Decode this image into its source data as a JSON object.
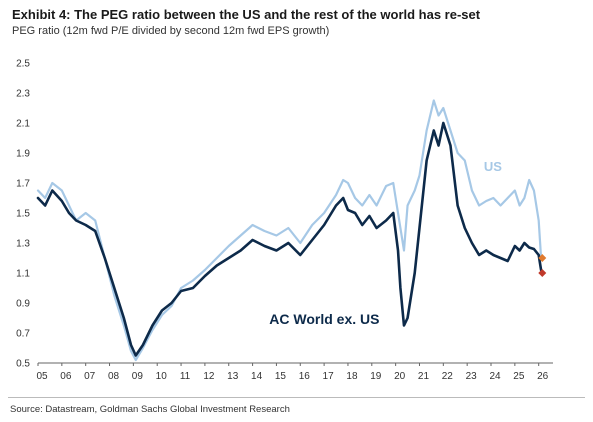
{
  "chart_data": {
    "type": "line",
    "title": "Exhibit 4: The PEG ratio between the US and the rest of the world has re-set",
    "subtitle": "PEG ratio (12m fwd P/E divided by second 12m fwd EPS growth)",
    "source": "Source: Datastream, Goldman Sachs Global Investment Research",
    "xlim": [
      2005.0,
      2026.6
    ],
    "ylim": [
      0.5,
      2.5
    ],
    "y_ticks": [
      "2.5",
      "2.3",
      "2.1",
      "1.9",
      "1.7",
      "1.5",
      "1.3",
      "1.1",
      "0.9",
      "0.7",
      "0.5"
    ],
    "x_ticks": [
      "05",
      "06",
      "07",
      "08",
      "09",
      "10",
      "11",
      "12",
      "13",
      "14",
      "15",
      "16",
      "17",
      "18",
      "19",
      "20",
      "21",
      "22",
      "23",
      "24",
      "25",
      "26"
    ],
    "grid": false,
    "series": [
      {
        "name": "US",
        "color": "#a6c8e6",
        "x": [
          2005.0,
          2005.3,
          2005.6,
          2006.0,
          2006.3,
          2006.6,
          2007.0,
          2007.4,
          2007.8,
          2008.2,
          2008.6,
          2008.9,
          2009.1,
          2009.4,
          2009.8,
          2010.2,
          2010.6,
          2011.0,
          2011.5,
          2012.0,
          2012.5,
          2013.0,
          2013.5,
          2014.0,
          2014.5,
          2015.0,
          2015.5,
          2016.0,
          2016.5,
          2017.0,
          2017.5,
          2017.8,
          2018.0,
          2018.3,
          2018.6,
          2018.9,
          2019.2,
          2019.6,
          2019.9,
          2020.1,
          2020.2,
          2020.35,
          2020.5,
          2020.8,
          2021.0,
          2021.3,
          2021.6,
          2021.8,
          2022.0,
          2022.3,
          2022.6,
          2022.9,
          2023.2,
          2023.5,
          2023.8,
          2024.1,
          2024.4,
          2024.7,
          2025.0,
          2025.2,
          2025.4,
          2025.6,
          2025.8,
          2026.0,
          2026.1
        ],
        "y": [
          1.65,
          1.6,
          1.7,
          1.65,
          1.55,
          1.45,
          1.5,
          1.45,
          1.2,
          0.95,
          0.75,
          0.58,
          0.52,
          0.6,
          0.72,
          0.82,
          0.88,
          1.0,
          1.05,
          1.12,
          1.2,
          1.28,
          1.35,
          1.42,
          1.38,
          1.35,
          1.4,
          1.3,
          1.42,
          1.5,
          1.62,
          1.72,
          1.7,
          1.6,
          1.55,
          1.62,
          1.55,
          1.68,
          1.7,
          1.5,
          1.4,
          1.25,
          1.55,
          1.65,
          1.75,
          2.05,
          2.25,
          2.15,
          2.2,
          2.05,
          1.9,
          1.85,
          1.65,
          1.55,
          1.58,
          1.6,
          1.55,
          1.6,
          1.65,
          1.55,
          1.6,
          1.72,
          1.65,
          1.45,
          1.2
        ]
      },
      {
        "name": "AC World ex. US",
        "color": "#0d2a4a",
        "x": [
          2005.0,
          2005.3,
          2005.6,
          2006.0,
          2006.3,
          2006.6,
          2007.0,
          2007.4,
          2007.8,
          2008.2,
          2008.6,
          2008.9,
          2009.1,
          2009.4,
          2009.8,
          2010.2,
          2010.6,
          2011.0,
          2011.5,
          2012.0,
          2012.5,
          2013.0,
          2013.5,
          2014.0,
          2014.5,
          2015.0,
          2015.5,
          2016.0,
          2016.5,
          2017.0,
          2017.5,
          2017.8,
          2018.0,
          2018.3,
          2018.6,
          2018.9,
          2019.2,
          2019.6,
          2019.9,
          2020.1,
          2020.2,
          2020.35,
          2020.5,
          2020.8,
          2021.0,
          2021.3,
          2021.6,
          2021.8,
          2022.0,
          2022.3,
          2022.6,
          2022.9,
          2023.2,
          2023.5,
          2023.8,
          2024.1,
          2024.4,
          2024.7,
          2025.0,
          2025.2,
          2025.4,
          2025.6,
          2025.8,
          2026.0,
          2026.1
        ],
        "y": [
          1.6,
          1.55,
          1.65,
          1.58,
          1.5,
          1.45,
          1.42,
          1.38,
          1.2,
          1.0,
          0.8,
          0.62,
          0.55,
          0.62,
          0.75,
          0.85,
          0.9,
          0.98,
          1.0,
          1.08,
          1.15,
          1.2,
          1.25,
          1.32,
          1.28,
          1.25,
          1.3,
          1.22,
          1.32,
          1.42,
          1.55,
          1.6,
          1.52,
          1.5,
          1.42,
          1.48,
          1.4,
          1.45,
          1.5,
          1.25,
          1.0,
          0.75,
          0.8,
          1.1,
          1.4,
          1.85,
          2.05,
          1.95,
          2.1,
          1.95,
          1.55,
          1.4,
          1.3,
          1.22,
          1.25,
          1.22,
          1.2,
          1.18,
          1.28,
          1.25,
          1.3,
          1.27,
          1.26,
          1.22,
          1.12
        ]
      }
    ],
    "end_markers": [
      {
        "name": "US",
        "x": 2026.15,
        "y": 1.2,
        "color": "#e07a2e"
      },
      {
        "name": "AC World ex. US",
        "x": 2026.15,
        "y": 1.1,
        "color": "#c0392b"
      }
    ],
    "annotations": [
      {
        "text": "US",
        "series": "US",
        "color": "#a6c8e6"
      },
      {
        "text": "AC World ex. US",
        "series": "AC World ex. US",
        "color": "#0d2a4a"
      }
    ]
  }
}
